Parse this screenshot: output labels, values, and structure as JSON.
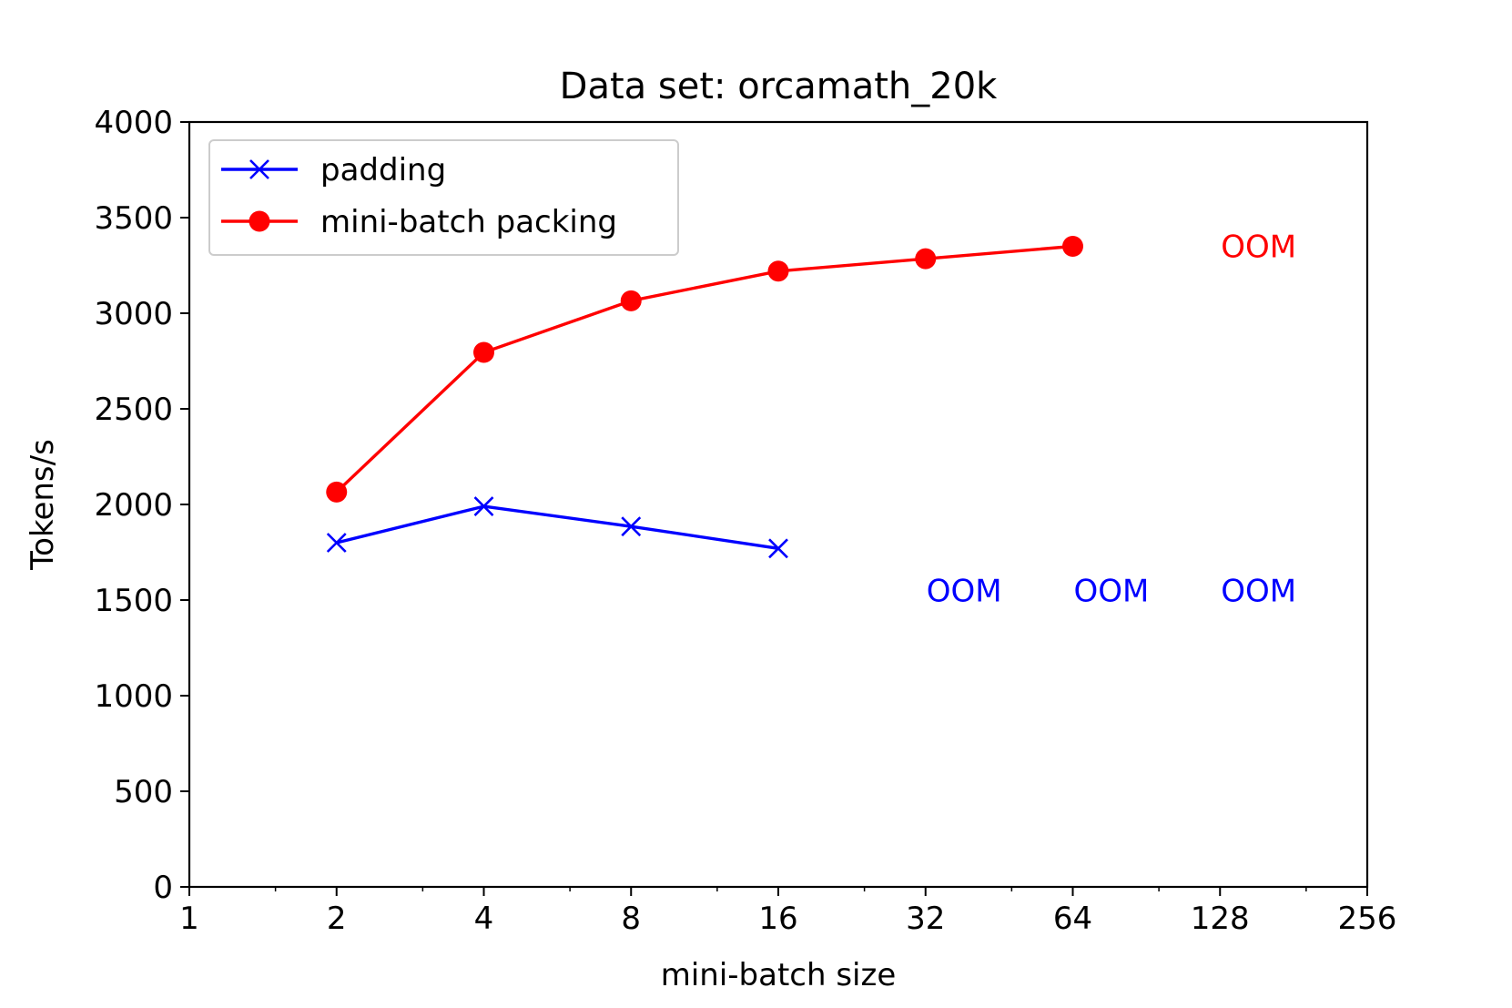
{
  "chart_data": {
    "type": "line",
    "title": "Data set: orcamath_20k",
    "xlabel": "mini-batch size",
    "ylabel": "Tokens/s",
    "xscale": "log2",
    "xlim": [
      1,
      256
    ],
    "ylim": [
      0,
      4000
    ],
    "xticks": [
      1,
      2,
      4,
      8,
      16,
      32,
      64,
      128,
      256
    ],
    "yticks": [
      0,
      500,
      1000,
      1500,
      2000,
      2500,
      3000,
      3500,
      4000
    ],
    "legend_position": "top-left",
    "series": [
      {
        "name": "padding",
        "color": "#0000ff",
        "marker": "x",
        "x": [
          2,
          4,
          8,
          16
        ],
        "values": [
          1800,
          1990,
          1885,
          1770
        ]
      },
      {
        "name": "mini-batch packing",
        "color": "#ff0000",
        "marker": "circle",
        "x": [
          2,
          4,
          8,
          16,
          32,
          64
        ],
        "values": [
          2065,
          2795,
          3065,
          3220,
          3285,
          3350
        ]
      }
    ],
    "annotations": [
      {
        "text": "OOM",
        "x": 128,
        "y": 3350,
        "color": "#ff0000"
      },
      {
        "text": "OOM",
        "x": 32,
        "y": 1550,
        "color": "#0000ff"
      },
      {
        "text": "OOM",
        "x": 64,
        "y": 1550,
        "color": "#0000ff"
      },
      {
        "text": "OOM",
        "x": 128,
        "y": 1550,
        "color": "#0000ff"
      }
    ]
  }
}
